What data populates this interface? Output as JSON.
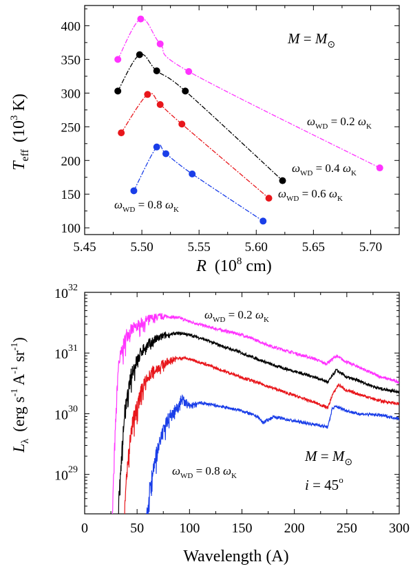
{
  "chart_data": [
    {
      "type": "line",
      "name": "teff-vs-radius",
      "title": "",
      "xlabel": {
        "main": "R",
        "paren": "(10",
        "exp": "8",
        "unit": " cm)"
      },
      "ylabel": {
        "main": "T",
        "sub": "eff",
        "paren": "(10",
        "exp": "3",
        "unit": " K)"
      },
      "xlim": [
        5.45,
        5.725
      ],
      "ylim": [
        90,
        430
      ],
      "x_ticks": [
        "5.45",
        "5.50",
        "5.55",
        "5.60",
        "5.65",
        "5.70"
      ],
      "x_tick_values": [
        5.45,
        5.5,
        5.55,
        5.6,
        5.65,
        5.7
      ],
      "y_ticks": [
        "100",
        "150",
        "200",
        "250",
        "300",
        "350",
        "400"
      ],
      "y_tick_values": [
        100,
        150,
        200,
        250,
        300,
        350,
        400
      ],
      "annotation": {
        "lhs": "M",
        "eq": " = ",
        "rhs": "M",
        "rhs_sub": "⊙"
      },
      "series": [
        {
          "name": "omega_wd = 0.2 omega_K",
          "color": "#ff33ff",
          "x": [
            5.479,
            5.499,
            5.516,
            5.541,
            5.708
          ],
          "values": [
            350,
            410,
            373,
            332,
            189
          ],
          "label": {
            "omega": "ω",
            "sub": "WD",
            "rest": " = 0.2 ",
            "omega2": "ω",
            "sub2": "K"
          }
        },
        {
          "name": "omega_wd = 0.4 omega_K",
          "color": "#000000",
          "x": [
            5.479,
            5.498,
            5.513,
            5.538,
            5.623
          ],
          "values": [
            303,
            357,
            333,
            303,
            170
          ],
          "label": {
            "omega": "ω",
            "sub": "WD",
            "rest": " = 0.4 ",
            "omega2": "ω",
            "sub2": "K"
          }
        },
        {
          "name": "omega_wd = 0.6 omega_K",
          "color": "#e8161b",
          "x": [
            5.482,
            5.505,
            5.516,
            5.535,
            5.611
          ],
          "values": [
            241,
            298,
            283,
            254,
            144
          ],
          "label": {
            "omega": "ω",
            "sub": "WD",
            "rest": " = 0.6 ",
            "omega2": "ω",
            "sub2": "K"
          }
        },
        {
          "name": "omega_wd = 0.8 omega_K",
          "color": "#1a3ee8",
          "x": [
            5.493,
            5.513,
            5.521,
            5.544,
            5.606
          ],
          "values": [
            155,
            220,
            210,
            180,
            110
          ],
          "label": {
            "omega": "ω",
            "sub": "WD",
            "rest": " = 0.8 ",
            "omega2": "ω",
            "sub2": "K"
          }
        }
      ]
    },
    {
      "type": "line",
      "name": "spectra",
      "title": "",
      "xlabel": {
        "text": "Wavelength (A)"
      },
      "ylabel": {
        "main": "L",
        "sub": "λ",
        "text": "(erg s",
        "e1": "-1",
        "t2": " A",
        "e2": "-1",
        "t3": " sr",
        "e3": "-1",
        "t4": ")"
      },
      "xlim": [
        0,
        300
      ],
      "ylim_log10": [
        28.35,
        32.0
      ],
      "x_ticks": [
        "0",
        "50",
        "100",
        "150",
        "200",
        "250",
        "300"
      ],
      "x_tick_values": [
        0,
        50,
        100,
        150,
        200,
        250,
        300
      ],
      "y_ticks": [
        {
          "base": "10",
          "exp": "29",
          "value": 29
        },
        {
          "base": "10",
          "exp": "30",
          "value": 30
        },
        {
          "base": "10",
          "exp": "31",
          "value": 31
        },
        {
          "base": "10",
          "exp": "32",
          "value": 32
        }
      ],
      "annotation": {
        "lhs": "M",
        "eq": " = ",
        "rhs": "M",
        "rhs_sub": "⊙",
        "l2_lhs": "i",
        "l2_rest": " = 45",
        "l2_exp": "o"
      },
      "series": [
        {
          "name": "omega_wd = 0.2 omega_K",
          "color": "#ff33ff",
          "x_start": 26,
          "x": [
            26,
            28,
            32,
            40,
            50,
            60,
            70,
            80,
            90,
            100,
            120,
            150,
            180,
            200,
            220,
            230,
            240,
            250,
            260,
            280,
            300
          ],
          "values": [
            28.0,
            29.2,
            30.8,
            31.3,
            31.45,
            31.55,
            31.6,
            31.6,
            31.58,
            31.52,
            31.42,
            31.3,
            31.1,
            31.0,
            30.9,
            30.82,
            30.95,
            30.85,
            30.78,
            30.62,
            30.52
          ]
        },
        {
          "name": "omega_wd = 0.4 omega_K",
          "color": "#000000",
          "x_start": 31,
          "x": [
            31,
            34,
            38,
            45,
            55,
            65,
            75,
            85,
            95,
            110,
            130,
            150,
            180,
            200,
            220,
            232,
            240,
            250,
            260,
            280,
            300
          ],
          "values": [
            28.0,
            29.0,
            30.0,
            30.7,
            31.05,
            31.2,
            31.28,
            31.32,
            31.32,
            31.25,
            31.12,
            31.0,
            30.8,
            30.7,
            30.6,
            30.52,
            30.72,
            30.6,
            30.55,
            30.42,
            30.36
          ]
        },
        {
          "name": "omega_wd = 0.6 omega_K",
          "color": "#e8161b",
          "x_start": 37,
          "x": [
            37,
            40,
            45,
            55,
            65,
            75,
            85,
            95,
            110,
            130,
            150,
            180,
            200,
            220,
            232,
            236,
            242,
            250,
            260,
            280,
            300
          ],
          "values": [
            28.0,
            29.0,
            29.8,
            30.45,
            30.7,
            30.82,
            30.9,
            30.92,
            30.85,
            30.72,
            30.6,
            30.42,
            30.3,
            30.18,
            30.1,
            30.3,
            30.48,
            30.38,
            30.33,
            30.22,
            30.16
          ]
        },
        {
          "name": "omega_wd = 0.8 omega_K",
          "color": "#1a3ee8",
          "x_start": 57,
          "x": [
            57,
            62,
            68,
            75,
            80,
            86,
            92,
            100,
            110,
            130,
            150,
            165,
            170,
            180,
            200,
            220,
            232,
            236,
            240,
            250,
            260,
            280,
            300
          ],
          "values": [
            28.0,
            28.8,
            29.3,
            29.7,
            29.95,
            30.05,
            30.25,
            30.12,
            30.18,
            30.12,
            30.05,
            29.95,
            29.85,
            29.95,
            29.88,
            29.82,
            29.78,
            30.08,
            30.12,
            30.05,
            30.0,
            29.98,
            29.92
          ]
        }
      ],
      "labels": {
        "top": {
          "omega": "ω",
          "sub": "WD",
          "rest": " = 0.2 ",
          "omega2": "ω",
          "sub2": "K"
        },
        "bottom": {
          "omega": "ω",
          "sub": "WD",
          "rest": " = 0.8 ",
          "omega2": "ω",
          "sub2": "K"
        }
      }
    }
  ]
}
